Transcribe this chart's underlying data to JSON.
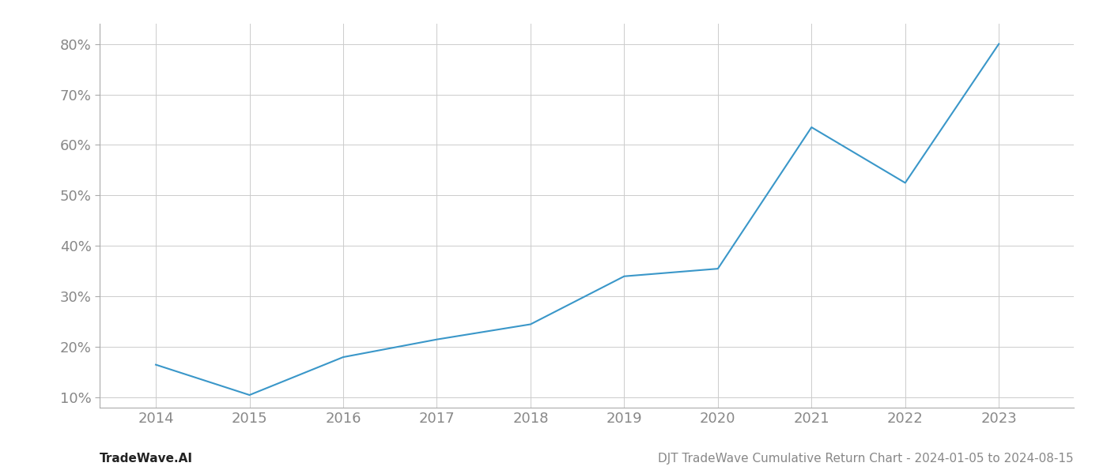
{
  "x_years": [
    2014,
    2015,
    2016,
    2017,
    2018,
    2019,
    2020,
    2021,
    2022,
    2023
  ],
  "y_values": [
    16.5,
    10.5,
    18.0,
    21.5,
    24.5,
    34.0,
    35.5,
    63.5,
    52.5,
    80.0
  ],
  "line_color": "#3a97c9",
  "line_width": 1.5,
  "background_color": "#ffffff",
  "grid_color": "#cccccc",
  "footer_left": "TradeWave.AI",
  "footer_right": "DJT TradeWave Cumulative Return Chart - 2024-01-05 to 2024-08-15",
  "ylabel_ticks": [
    10,
    20,
    30,
    40,
    50,
    60,
    70,
    80
  ],
  "xlabel_ticks": [
    2014,
    2015,
    2016,
    2017,
    2018,
    2019,
    2020,
    2021,
    2022,
    2023
  ],
  "ylim": [
    8,
    84
  ],
  "xlim": [
    2013.4,
    2023.8
  ],
  "tick_color": "#888888",
  "tick_fontsize": 13,
  "footer_left_color": "#222222",
  "footer_right_color": "#888888",
  "footer_fontsize": 11,
  "spine_color": "#aaaaaa"
}
